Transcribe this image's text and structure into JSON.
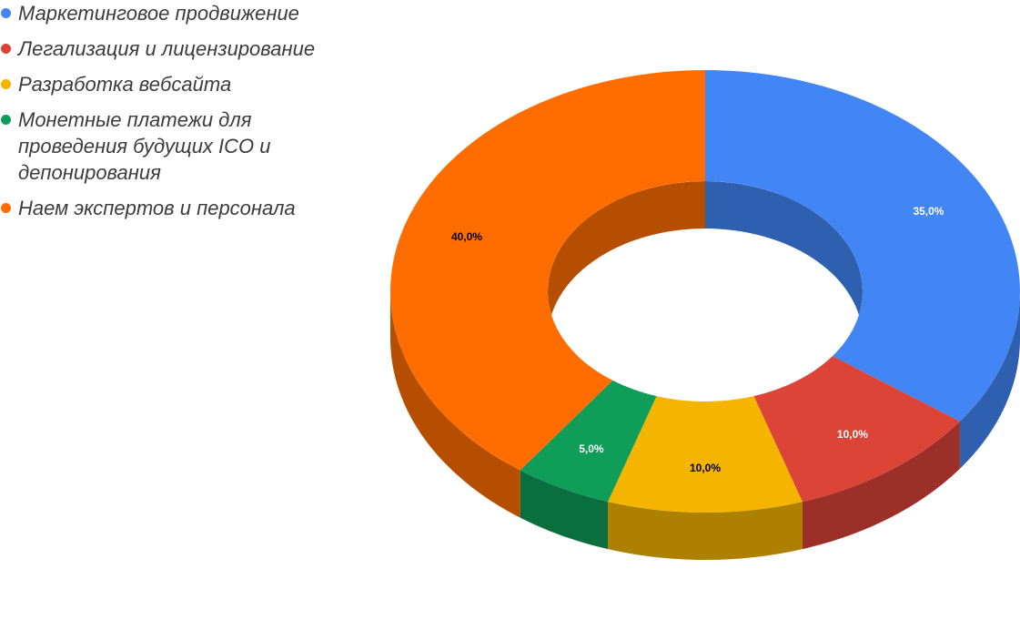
{
  "chart_data": {
    "type": "pie",
    "variant": "donut-3d",
    "legend_position": "top-left",
    "slices": [
      {
        "label": "Маркетинговое продвижение",
        "value": 35.0,
        "display": "35,0%",
        "color": "#4285f4",
        "side_color": "#2f5faf",
        "label_color": "#ffffff"
      },
      {
        "label": "Легализация и лицензирование",
        "value": 10.0,
        "display": "10,0%",
        "color": "#db4437",
        "side_color": "#9c3028",
        "label_color": "#ffffff"
      },
      {
        "label": "Разработка вебсайта",
        "value": 10.0,
        "display": "10,0%",
        "color": "#f4b400",
        "side_color": "#ad8000",
        "label_color": "#000000"
      },
      {
        "label": "Монетные платежи для\nпроведения будущих ICO и\nдепонирования",
        "value": 5.0,
        "display": "5,0%",
        "color": "#0f9d58",
        "side_color": "#0b6e3e",
        "label_color": "#ffffff"
      },
      {
        "label": "Наем экспертов и персонала",
        "value": 40.0,
        "display": "40,0%",
        "color": "#ff6d00",
        "side_color": "#b54e00",
        "label_color": "#000000"
      }
    ]
  }
}
